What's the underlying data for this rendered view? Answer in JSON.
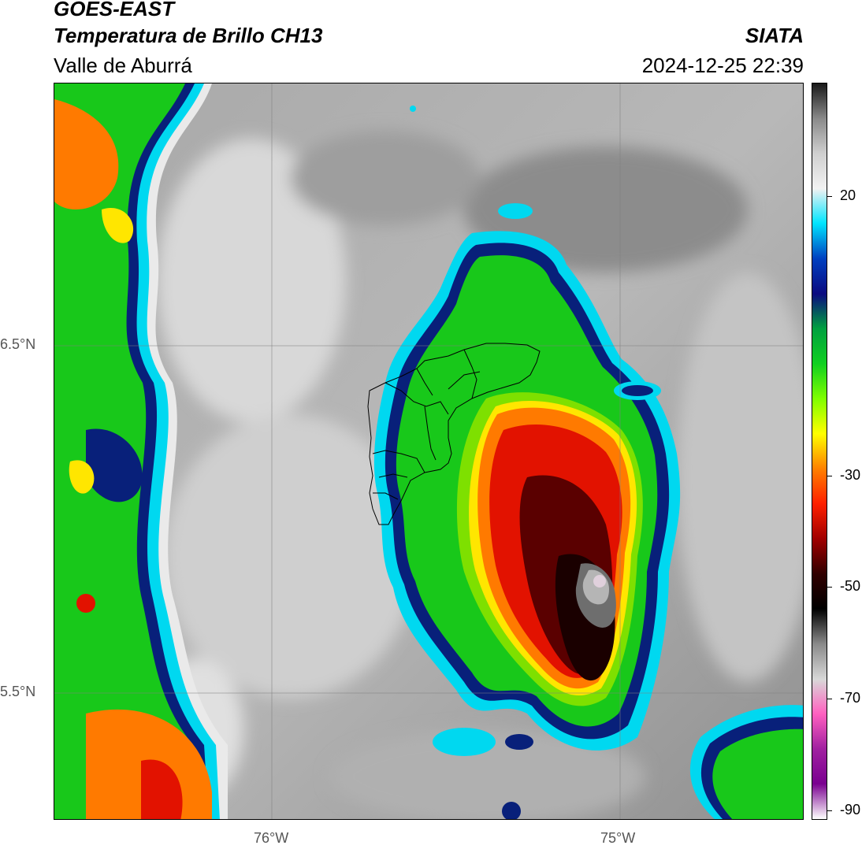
{
  "header": {
    "satellite": "GOES-EAST",
    "product": "Temperatura de Brillo CH13",
    "region": "Valle de Aburrá",
    "agency": "SIATA",
    "timestamp": "2024-12-25 22:39"
  },
  "axes": {
    "y_labels": [
      "6.5°N",
      "5.5°N"
    ],
    "x_labels": [
      "76°W",
      "75°W"
    ]
  },
  "colorbar": {
    "labels": [
      "20",
      "-30",
      "-50",
      "-70",
      "-90"
    ],
    "colors": [
      "#1a1a1a",
      "#8a8a8a",
      "#cfcfcf",
      "#f2f2f2",
      "#00e5ff",
      "#0040c0",
      "#0a0a80",
      "#00a040",
      "#10d020",
      "#80ff00",
      "#ffff00",
      "#ff8000",
      "#ff2000",
      "#a00000",
      "#300000",
      "#000000",
      "#8a8a8a",
      "#d8d8d8",
      "#ff60c0",
      "#a020a0",
      "#7a0090",
      "#ffffff"
    ]
  },
  "map": {
    "colors": {
      "cloud_free": "#9a9a9a",
      "warm_gray": "#d6d6d6",
      "cyan": "#00d8f0",
      "navy": "#08207a",
      "green": "#18c81a",
      "lime": "#7ee000",
      "yellow": "#ffe600",
      "orange": "#ff7a00",
      "red": "#e21200",
      "dark_red": "#5a0000",
      "core_gray": "#6e6e6e",
      "core_white": "#e0d0dc"
    }
  }
}
